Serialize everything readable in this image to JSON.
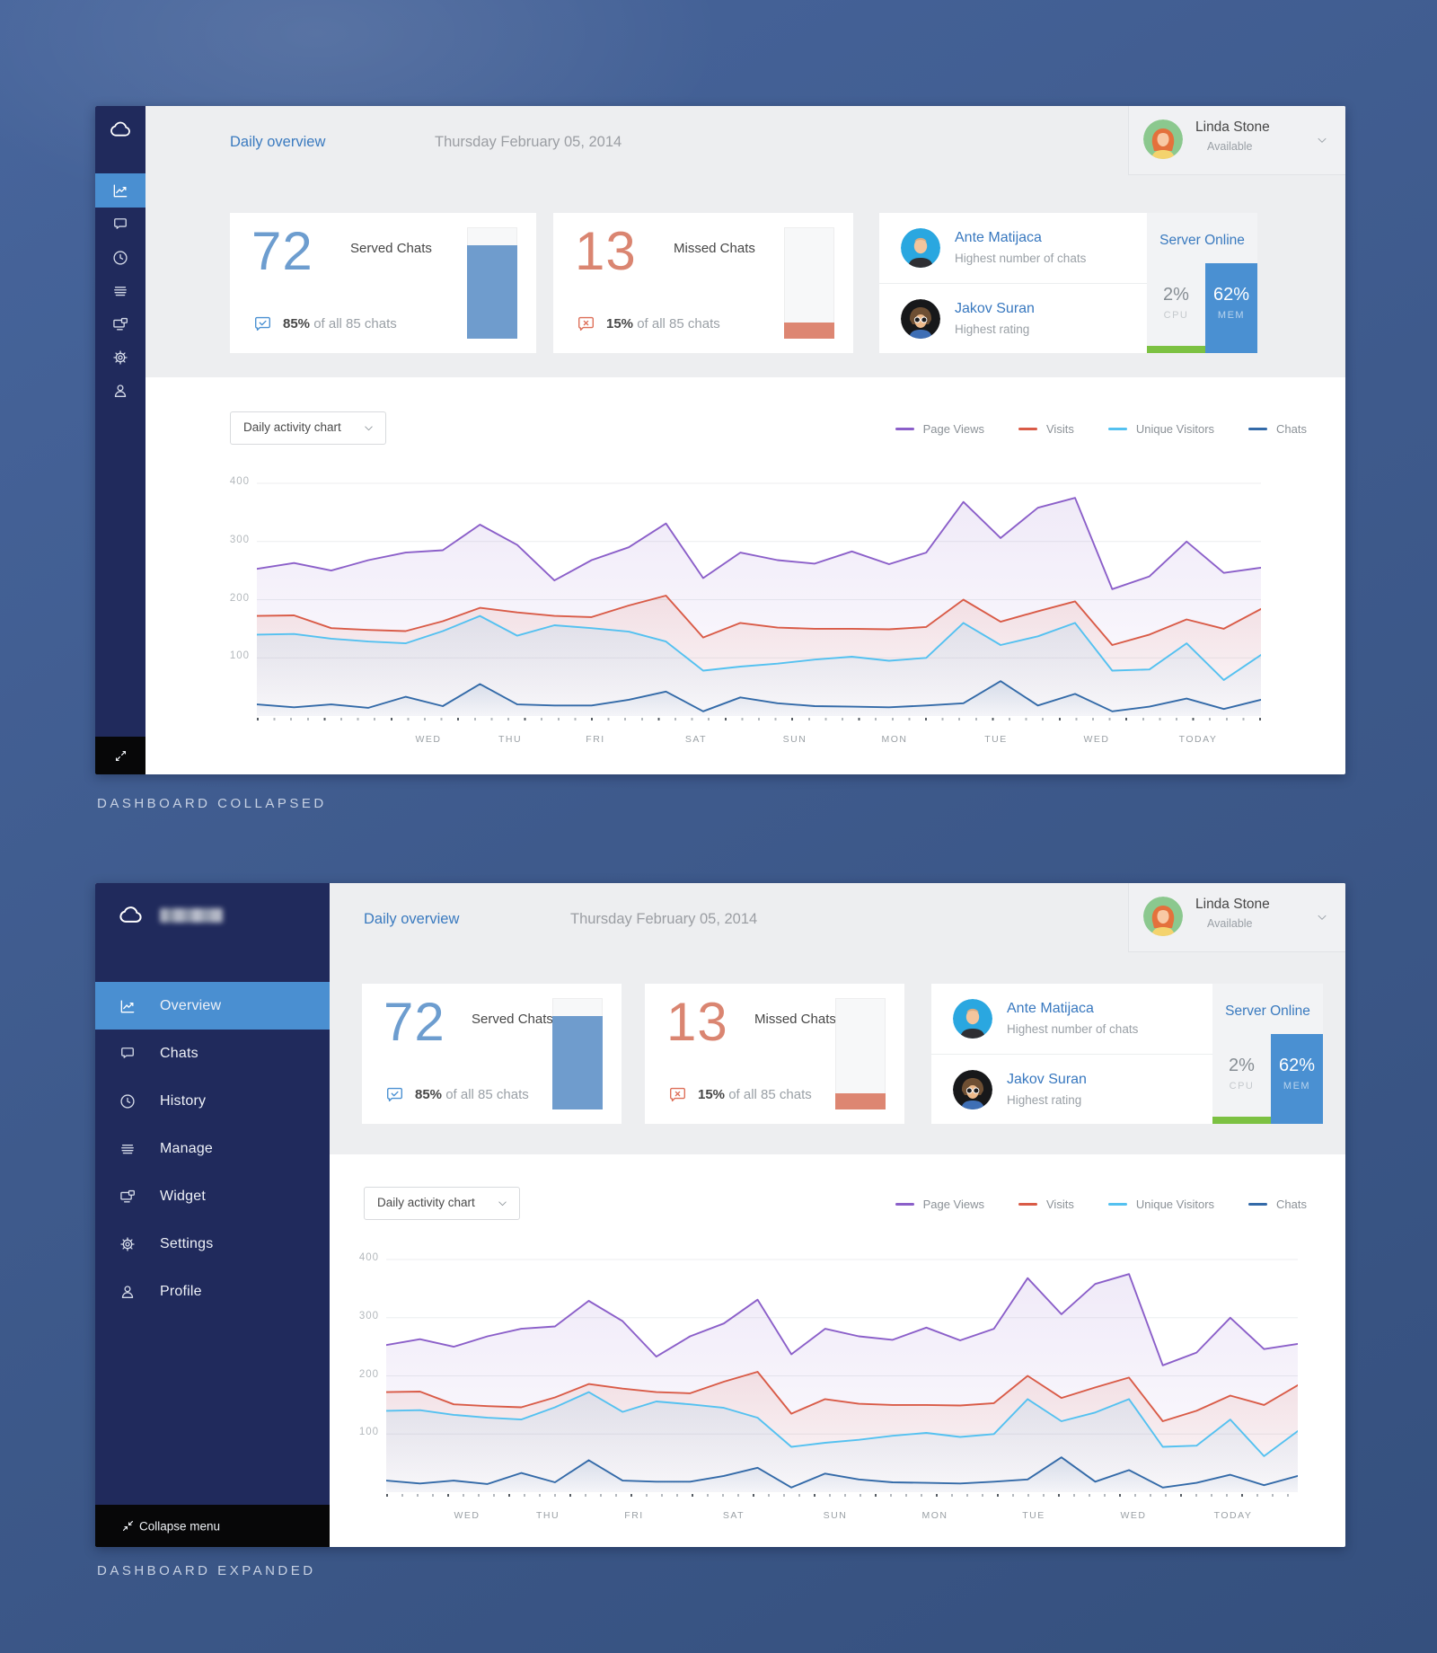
{
  "captions": {
    "collapsed": "DASHBOARD COLLAPSED",
    "expanded": "DASHBOARD EXPANDED"
  },
  "sidebar": {
    "items": [
      {
        "label": "Overview",
        "icon": "linechart",
        "active": true
      },
      {
        "label": "Chats",
        "icon": "chat",
        "active": false
      },
      {
        "label": "History",
        "icon": "clock",
        "active": false
      },
      {
        "label": "Manage",
        "icon": "stack",
        "active": false
      },
      {
        "label": "Widget",
        "icon": "widget",
        "active": false
      },
      {
        "label": "Settings",
        "icon": "gear",
        "active": false
      },
      {
        "label": "Profile",
        "icon": "person",
        "active": false
      }
    ],
    "collapse_label": "Collapse menu"
  },
  "header": {
    "title": "Daily overview",
    "date": "Thursday February 05, 2014"
  },
  "user": {
    "name": "Linda Stone",
    "status": "Available",
    "status_color": "#7bc354"
  },
  "stats": {
    "served": {
      "value": "72",
      "label": "Served Chats",
      "percent": "85%",
      "caption": "of all 85 chats",
      "percent_value": 85,
      "accent": "#6d9dcf",
      "bar_color": "#6f9ccd",
      "icon_color": "#4a90d2"
    },
    "missed": {
      "value": "13",
      "label": "Missed Chats",
      "percent": "15%",
      "caption": "of all 85 chats",
      "percent_value": 15,
      "accent": "#da8571",
      "bar_color": "#dd8672",
      "icon_color": "#dd6e57"
    }
  },
  "team": {
    "members": [
      {
        "name": "Ante Matijaca",
        "caption": "Highest number of chats"
      },
      {
        "name": "Jakov Suran",
        "caption": "Highest rating"
      }
    ]
  },
  "server": {
    "title": "Server Online",
    "cpu_value": "2%",
    "cpu_label": "CPU",
    "mem_value": "62%",
    "mem_label": "MEM",
    "mem_percent": 62,
    "cpu_bar_color": "#7cc142",
    "mem_color": "#4a90d2"
  },
  "chart_controls": {
    "dropdown_label": "Daily activity chart"
  },
  "chart_data": {
    "type": "area",
    "title": "Daily activity chart",
    "x_labels": [
      "WED",
      "THU",
      "FRI",
      "SAT",
      "SUN",
      "MON",
      "TUE",
      "WED",
      "TODAY"
    ],
    "y_ticks": [
      400,
      300,
      200,
      100
    ],
    "ylim": [
      0,
      417
    ],
    "grid": true,
    "legend_position": "top-right",
    "series": [
      {
        "name": "Page Views",
        "color": "#8b5fc9",
        "values": [
          253,
          263,
          250,
          268,
          281,
          285,
          329,
          294,
          233,
          268,
          290,
          331,
          237,
          281,
          268,
          262,
          283,
          261,
          281,
          368,
          306,
          358,
          375,
          218,
          240,
          300,
          246,
          255
        ]
      },
      {
        "name": "Visits",
        "color": "#d95b47",
        "values": [
          172,
          173,
          151,
          148,
          146,
          163,
          186,
          178,
          172,
          170,
          190,
          207,
          135,
          160,
          152,
          150,
          150,
          149,
          153,
          200,
          162,
          180,
          197,
          122,
          140,
          166,
          150,
          184
        ]
      },
      {
        "name": "Unique Visitors",
        "color": "#54c1f0",
        "values": [
          140,
          141,
          133,
          128,
          125,
          146,
          172,
          138,
          156,
          151,
          145,
          128,
          78,
          85,
          90,
          97,
          102,
          95,
          100,
          160,
          122,
          137,
          160,
          78,
          80,
          125,
          62,
          105
        ]
      },
      {
        "name": "Chats",
        "color": "#336aa8",
        "values": [
          20,
          15,
          20,
          14,
          33,
          17,
          55,
          20,
          18,
          18,
          28,
          42,
          8,
          32,
          22,
          17,
          16,
          15,
          18,
          22,
          60,
          18,
          38,
          8,
          16,
          30,
          12,
          28
        ]
      }
    ]
  }
}
